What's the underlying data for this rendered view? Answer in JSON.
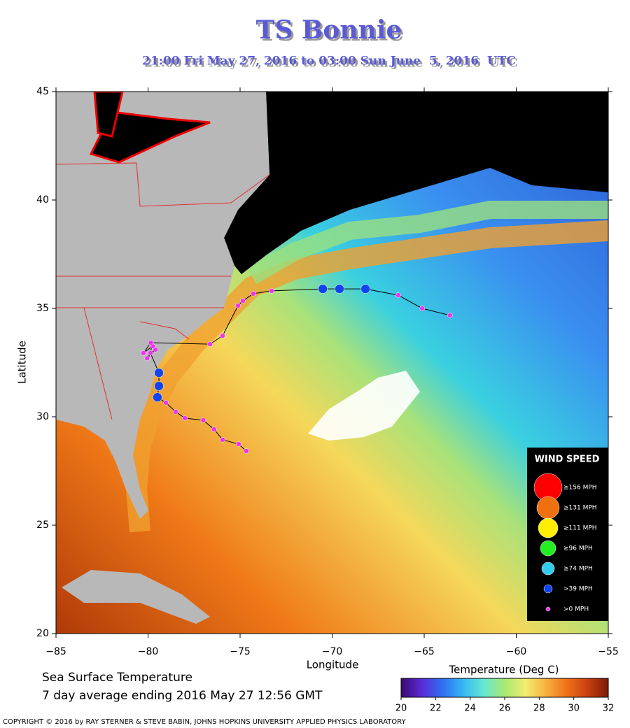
{
  "chart_data": {
    "type": "map",
    "title": "TS Bonnie",
    "subtitle": "21:00 Fri May 27, 2016 to 03:00 Sun June  5, 2016  UTC",
    "x_label": "Longitude",
    "y_label": "Latitude",
    "xlim": [
      -85,
      -55
    ],
    "ylim": [
      20,
      45
    ],
    "xticks": [
      {
        "value": -85,
        "label": "−85"
      },
      {
        "value": -80,
        "label": "−80"
      },
      {
        "value": -75,
        "label": "−75"
      },
      {
        "value": -70,
        "label": "−70"
      },
      {
        "value": -65,
        "label": "−65"
      },
      {
        "value": -60,
        "label": "−60"
      },
      {
        "value": -55,
        "label": "−55"
      }
    ],
    "yticks": [
      20,
      25,
      30,
      35,
      40,
      45
    ],
    "track": {
      "line_color": "#000000",
      "lon": [
        -74.66,
        -75.08,
        -75.95,
        -76.41,
        -77.0,
        -78.0,
        -78.5,
        -79.03,
        -79.49,
        -79.41,
        -79.41,
        -79.87,
        -79.6,
        -80.05,
        -79.75,
        -80.25,
        -79.85,
        -76.63,
        -75.95,
        -75.11,
        -74.85,
        -74.28,
        -73.29,
        -70.51,
        -69.6,
        -68.19,
        -66.41,
        -65.11,
        -63.6
      ],
      "lat": [
        28.42,
        28.74,
        28.94,
        29.42,
        29.84,
        29.94,
        30.23,
        30.65,
        30.9,
        31.42,
        32.03,
        32.94,
        33.1,
        32.7,
        33.26,
        32.94,
        33.42,
        33.35,
        33.74,
        35.13,
        35.35,
        35.68,
        35.81,
        35.9,
        35.9,
        35.9,
        35.61,
        35.0,
        34.68
      ],
      "colors": [
        "#ee33ee",
        "#ee33ee",
        "#ee33ee",
        "#ee33ee",
        "#ee33ee",
        "#ee33ee",
        "#ee33ee",
        "#ee33ee",
        "#1144ee",
        "#1144ee",
        "#1144ee",
        "#ee33ee",
        "#ee33ee",
        "#ee33ee",
        "#ee33ee",
        "#ee33ee",
        "#ee33ee",
        "#ee33ee",
        "#ee33ee",
        "#ee33ee",
        "#ee33ee",
        "#ee33ee",
        "#ee33ee",
        "#1144ee",
        "#1144ee",
        "#1144ee",
        "#ee33ee",
        "#ee33ee",
        "#ee33ee"
      ]
    },
    "legend": {
      "title": "WIND SPEED",
      "items": [
        {
          "label": "≥156 MPH",
          "color": "#ff0000"
        },
        {
          "label": "≥131 MPH",
          "color": "#f07010"
        },
        {
          "label": "≥111 MPH",
          "color": "#ffee00"
        },
        {
          "label": "≥96 MPH",
          "color": "#22ee22"
        },
        {
          "label": "≥74 MPH",
          "color": "#33ccee"
        },
        {
          "label": ">39 MPH",
          "color": "#1144ee"
        },
        {
          "label": ">0 MPH",
          "color": "#ee33ee"
        }
      ]
    },
    "colorbar": {
      "label": "Temperature (Deg C)",
      "clim": [
        20,
        32
      ],
      "ticks": [
        20,
        22,
        24,
        26,
        28,
        30,
        32
      ],
      "colors": [
        "#3a0a70",
        "#5a2ad8",
        "#2f6ff0",
        "#36b8f4",
        "#66e8d0",
        "#a8e870",
        "#f2ee70",
        "#f8b040",
        "#f07018",
        "#c84010",
        "#7a1a08"
      ]
    },
    "caption": [
      "Sea Surface Temperature",
      "7 day average ending 2016 May 27 12:56 GMT"
    ],
    "copyright": "COPYRIGHT © 2016 by RAY STERNER & STEVE BABIN, JOHNS HOPKINS UNIVERSITY APPLIED PHYSICS LABORATORY"
  }
}
